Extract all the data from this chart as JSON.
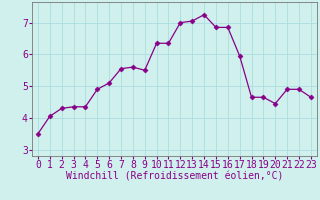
{
  "x": [
    0,
    1,
    2,
    3,
    4,
    5,
    6,
    7,
    8,
    9,
    10,
    11,
    12,
    13,
    14,
    15,
    16,
    17,
    18,
    19,
    20,
    21,
    22,
    23
  ],
  "y": [
    3.5,
    4.05,
    4.3,
    4.35,
    4.35,
    4.9,
    5.1,
    5.55,
    5.6,
    5.5,
    6.35,
    6.35,
    7.0,
    7.05,
    7.25,
    6.85,
    6.85,
    5.95,
    4.65,
    4.65,
    4.45,
    4.9,
    4.9,
    4.65
  ],
  "line_color": "#880088",
  "marker": "D",
  "marker_size": 2.5,
  "bg_color": "#cff0ec",
  "grid_color": "#aadddd",
  "xlabel": "Windchill (Refroidissement éolien,°C)",
  "xlim": [
    -0.5,
    23.5
  ],
  "ylim": [
    2.8,
    7.65
  ],
  "yticks": [
    3,
    4,
    5,
    6,
    7
  ],
  "xticks": [
    0,
    1,
    2,
    3,
    4,
    5,
    6,
    7,
    8,
    9,
    10,
    11,
    12,
    13,
    14,
    15,
    16,
    17,
    18,
    19,
    20,
    21,
    22,
    23
  ],
  "xlabel_fontsize": 7,
  "tick_fontsize": 7,
  "figsize": [
    3.2,
    2.0
  ],
  "dpi": 100
}
